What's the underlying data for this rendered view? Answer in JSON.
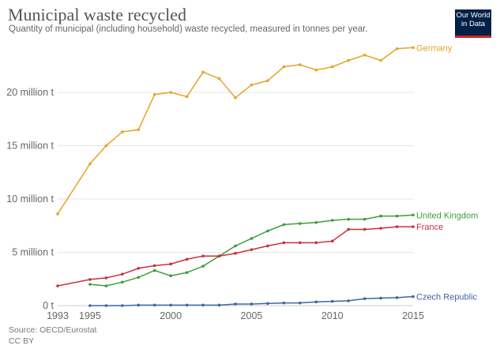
{
  "chart_data": {
    "type": "line",
    "title": "Municipal waste recycled",
    "subtitle": "Quantity of municipal (including household) waste recycled, measured in tonnes per year.",
    "source": "Source: OECD/Eurostat",
    "license": "CC BY",
    "logo": "Our World in Data",
    "xlim": [
      1993,
      2015
    ],
    "ylim": [
      0,
      25
    ],
    "x_ticks": [
      1993,
      1995,
      2000,
      2005,
      2010,
      2015
    ],
    "y_ticks": [
      {
        "value": 0,
        "label": "0 t"
      },
      {
        "value": 5,
        "label": "5 million t"
      },
      {
        "value": 10,
        "label": "10 million t"
      },
      {
        "value": 15,
        "label": "15 million t"
      },
      {
        "value": 20,
        "label": "20 million t"
      }
    ],
    "grid": true,
    "legend": "inline-right",
    "series": [
      {
        "name": "Germany",
        "color": "#e7a327",
        "points": [
          [
            1993,
            8.6
          ],
          [
            1995,
            13.3
          ],
          [
            1996,
            15.0
          ],
          [
            1997,
            16.3
          ],
          [
            1998,
            16.5
          ],
          [
            1999,
            19.8
          ],
          [
            2000,
            20.0
          ],
          [
            2001,
            19.6
          ],
          [
            2002,
            21.9
          ],
          [
            2003,
            21.3
          ],
          [
            2004,
            19.5
          ],
          [
            2005,
            20.7
          ],
          [
            2006,
            21.1
          ],
          [
            2007,
            22.4
          ],
          [
            2008,
            22.6
          ],
          [
            2009,
            22.1
          ],
          [
            2010,
            22.4
          ],
          [
            2011,
            23.0
          ],
          [
            2012,
            23.5
          ],
          [
            2013,
            23.0
          ],
          [
            2014,
            24.1
          ],
          [
            2015,
            24.2
          ]
        ]
      },
      {
        "name": "United Kingdom",
        "color": "#3c9d3c",
        "points": [
          [
            1995,
            2.0
          ],
          [
            1996,
            1.85
          ],
          [
            1997,
            2.2
          ],
          [
            1998,
            2.65
          ],
          [
            1999,
            3.3
          ],
          [
            2000,
            2.8
          ],
          [
            2001,
            3.1
          ],
          [
            2002,
            3.7
          ],
          [
            2003,
            4.65
          ],
          [
            2004,
            5.6
          ],
          [
            2005,
            6.3
          ],
          [
            2006,
            7.0
          ],
          [
            2007,
            7.6
          ],
          [
            2008,
            7.7
          ],
          [
            2009,
            7.8
          ],
          [
            2010,
            8.0
          ],
          [
            2011,
            8.1
          ],
          [
            2012,
            8.1
          ],
          [
            2013,
            8.4
          ],
          [
            2014,
            8.4
          ],
          [
            2015,
            8.5
          ]
        ]
      },
      {
        "name": "France",
        "color": "#c8313d",
        "points": [
          [
            1993,
            1.85
          ],
          [
            1995,
            2.45
          ],
          [
            1996,
            2.6
          ],
          [
            1997,
            2.95
          ],
          [
            1998,
            3.5
          ],
          [
            1999,
            3.75
          ],
          [
            2000,
            3.9
          ],
          [
            2001,
            4.35
          ],
          [
            2002,
            4.65
          ],
          [
            2003,
            4.65
          ],
          [
            2004,
            4.9
          ],
          [
            2005,
            5.25
          ],
          [
            2006,
            5.6
          ],
          [
            2007,
            5.9
          ],
          [
            2008,
            5.9
          ],
          [
            2009,
            5.9
          ],
          [
            2010,
            6.05
          ],
          [
            2011,
            7.15
          ],
          [
            2012,
            7.15
          ],
          [
            2013,
            7.25
          ],
          [
            2014,
            7.4
          ],
          [
            2015,
            7.4
          ]
        ]
      },
      {
        "name": "Czech Republic",
        "color": "#3b67a5",
        "points": [
          [
            1995,
            0.0
          ],
          [
            1996,
            0.0
          ],
          [
            1997,
            0.0
          ],
          [
            1998,
            0.05
          ],
          [
            1999,
            0.05
          ],
          [
            2000,
            0.05
          ],
          [
            2001,
            0.05
          ],
          [
            2002,
            0.05
          ],
          [
            2003,
            0.05
          ],
          [
            2004,
            0.15
          ],
          [
            2005,
            0.15
          ],
          [
            2006,
            0.2
          ],
          [
            2007,
            0.25
          ],
          [
            2008,
            0.25
          ],
          [
            2009,
            0.35
          ],
          [
            2010,
            0.4
          ],
          [
            2011,
            0.45
          ],
          [
            2012,
            0.65
          ],
          [
            2013,
            0.7
          ],
          [
            2014,
            0.75
          ],
          [
            2015,
            0.85
          ]
        ]
      }
    ]
  }
}
